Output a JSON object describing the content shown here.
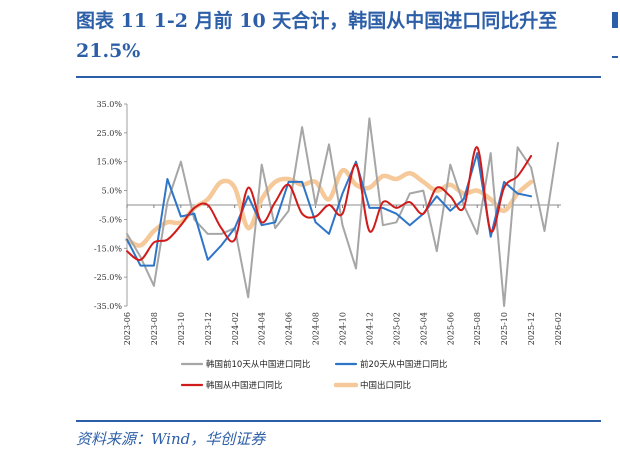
{
  "title": "图表 11   1-2 月前 10 天合计，韩国从中国进口同比升至 21.5%",
  "source": "资料来源：Wind，华创证券",
  "chart_data": {
    "type": "line",
    "x": [
      "2023-06",
      "2023-07",
      "2023-08",
      "2023-09",
      "2023-10",
      "2023-11",
      "2023-12",
      "2024-01",
      "2024-02",
      "2024-03",
      "2024-04",
      "2024-05",
      "2024-06",
      "2024-07",
      "2024-08",
      "2024-09",
      "2024-10",
      "2024-11",
      "2024-12",
      "2025-01",
      "2025-02",
      "2025-03",
      "2025-04",
      "2025-05",
      "2025-06",
      "2025-07",
      "2025-08",
      "2025-09",
      "2025-10",
      "2025-11",
      "2025-12",
      "2026-01",
      "2026-02"
    ],
    "x_tick_labels": [
      "2023-06",
      "2023-08",
      "2023-10",
      "2023-12",
      "2024-02",
      "2024-04",
      "2024-06",
      "2024-08",
      "2024-10",
      "2024-12",
      "2025-02",
      "2025-04",
      "2025-06",
      "2025-08",
      "2025-10",
      "2025-12",
      "2026-02"
    ],
    "y_ticks": [
      "35.0%",
      "25.0%",
      "15.0%",
      "5.0%",
      "-5.0%",
      "-15.0%",
      "-25.0%",
      "-35.0%"
    ],
    "ylim": [
      -35,
      35
    ],
    "series": [
      {
        "name": "韩国前10天从中国进口同比",
        "color": "#a6a6a6",
        "values": [
          -10,
          -18,
          -28,
          1,
          15,
          -5,
          -10,
          -10,
          -8,
          -32,
          14,
          -8,
          -2,
          27,
          0,
          21,
          -7,
          -22,
          30,
          -7,
          -6,
          4,
          5,
          -16,
          14,
          0,
          -10,
          18,
          -35,
          20,
          13,
          -9,
          21.5
        ]
      },
      {
        "name": "前20天从中国进口同比",
        "color": "#2e75c8",
        "values": [
          -12,
          -21,
          -21,
          9,
          -4,
          -3,
          -19,
          -14,
          -8,
          3,
          -7,
          -6,
          8,
          8,
          -6,
          -10,
          4,
          15,
          -1,
          -1,
          -3,
          -7,
          -3,
          3,
          -2,
          2,
          18,
          -11,
          8,
          4,
          3,
          null,
          null
        ]
      },
      {
        "name": "韩国从中国进口同比",
        "color": "#d01b1b",
        "values": [
          -16,
          -19,
          -13,
          -12,
          -7,
          -1,
          0,
          -8,
          -12,
          6,
          -6,
          1,
          7,
          -3,
          -4,
          0,
          -3,
          14,
          -9,
          1,
          -1,
          1,
          -3,
          6,
          3,
          -1,
          20,
          -9,
          6,
          10,
          17,
          null,
          null
        ]
      },
      {
        "name": "中国出口同比",
        "color": "#f5c99a",
        "values": [
          -12,
          -14,
          -9,
          -6,
          -6,
          -1,
          2,
          8,
          6,
          -8,
          2,
          8,
          9,
          7,
          8,
          2,
          12,
          7,
          6,
          10,
          9,
          11,
          8,
          5,
          7,
          4,
          5,
          2,
          -2,
          4,
          8,
          null,
          null
        ]
      }
    ]
  }
}
